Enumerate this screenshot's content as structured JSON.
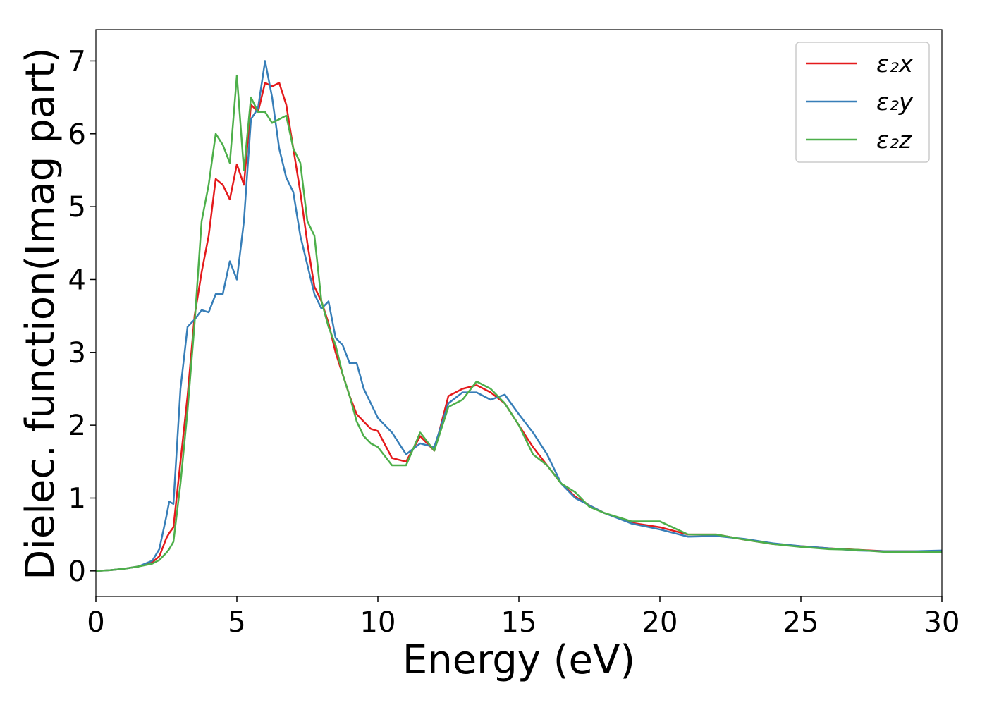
{
  "chart_data": {
    "type": "line",
    "xlabel": "Energy (eV)",
    "ylabel": "Dielec. function(Imag part)",
    "x": [
      0,
      0.5,
      1,
      1.5,
      2,
      2.25,
      2.5,
      2.6,
      2.75,
      3,
      3.25,
      3.5,
      3.75,
      4,
      4.25,
      4.5,
      4.75,
      5,
      5.25,
      5.5,
      5.75,
      6,
      6.25,
      6.5,
      6.75,
      7,
      7.25,
      7.5,
      7.75,
      8,
      8.25,
      8.5,
      8.75,
      9,
      9.25,
      9.5,
      9.75,
      10,
      10.5,
      11,
      11.5,
      12,
      12.5,
      13,
      13.5,
      14,
      14.5,
      15,
      15.5,
      16,
      16.5,
      17,
      17.5,
      18,
      19,
      20,
      21,
      22,
      23,
      24,
      25,
      26,
      27,
      28,
      29,
      30
    ],
    "series": [
      {
        "name": "ε₂x",
        "color": "#e41a1c",
        "values": [
          0,
          0.01,
          0.03,
          0.06,
          0.12,
          0.2,
          0.45,
          0.52,
          0.6,
          1.5,
          2.4,
          3.5,
          4.1,
          4.6,
          5.38,
          5.3,
          5.1,
          5.58,
          5.3,
          6.4,
          6.3,
          6.7,
          6.65,
          6.7,
          6.4,
          5.8,
          5.2,
          4.5,
          3.9,
          3.7,
          3.4,
          3.0,
          2.7,
          2.4,
          2.15,
          2.05,
          1.95,
          1.92,
          1.55,
          1.5,
          1.85,
          1.65,
          2.4,
          2.5,
          2.55,
          2.45,
          2.3,
          2.0,
          1.7,
          1.45,
          1.2,
          1.02,
          0.9,
          0.8,
          0.66,
          0.6,
          0.5,
          0.5,
          0.43,
          0.37,
          0.34,
          0.31,
          0.29,
          0.27,
          0.27,
          0.27
        ]
      },
      {
        "name": "ε₂y",
        "color": "#377eb8",
        "values": [
          0,
          0.01,
          0.03,
          0.06,
          0.14,
          0.3,
          0.75,
          0.95,
          0.92,
          2.5,
          3.35,
          3.45,
          3.58,
          3.55,
          3.8,
          3.8,
          4.25,
          4.0,
          4.8,
          6.2,
          6.35,
          7.0,
          6.5,
          5.8,
          5.4,
          5.2,
          4.6,
          4.2,
          3.8,
          3.6,
          3.7,
          3.2,
          3.1,
          2.85,
          2.85,
          2.5,
          2.3,
          2.1,
          1.9,
          1.6,
          1.75,
          1.7,
          2.3,
          2.45,
          2.45,
          2.35,
          2.42,
          2.15,
          1.9,
          1.6,
          1.2,
          1.0,
          0.9,
          0.8,
          0.65,
          0.57,
          0.47,
          0.48,
          0.44,
          0.38,
          0.34,
          0.31,
          0.28,
          0.27,
          0.27,
          0.28
        ]
      },
      {
        "name": "ε₂z",
        "color": "#4daf4a",
        "values": [
          0,
          0.01,
          0.03,
          0.06,
          0.1,
          0.15,
          0.25,
          0.3,
          0.4,
          1.2,
          2.2,
          3.4,
          4.8,
          5.3,
          6.0,
          5.85,
          5.6,
          6.8,
          5.5,
          6.5,
          6.3,
          6.3,
          6.15,
          6.2,
          6.25,
          5.8,
          5.6,
          4.8,
          4.6,
          3.7,
          3.35,
          3.1,
          2.7,
          2.4,
          2.05,
          1.85,
          1.75,
          1.7,
          1.45,
          1.45,
          1.9,
          1.65,
          2.25,
          2.35,
          2.6,
          2.5,
          2.3,
          2.0,
          1.6,
          1.45,
          1.2,
          1.08,
          0.88,
          0.8,
          0.68,
          0.68,
          0.5,
          0.5,
          0.43,
          0.37,
          0.33,
          0.3,
          0.29,
          0.26,
          0.26,
          0.26
        ]
      }
    ],
    "xlim": [
      0,
      30
    ],
    "xticks": [
      0,
      5,
      10,
      15,
      20,
      25,
      30
    ],
    "ylim": [
      -0.35,
      7.43
    ],
    "yticks": [
      0,
      1,
      2,
      3,
      4,
      5,
      6,
      7
    ],
    "grid": false,
    "legend": "upper right"
  }
}
